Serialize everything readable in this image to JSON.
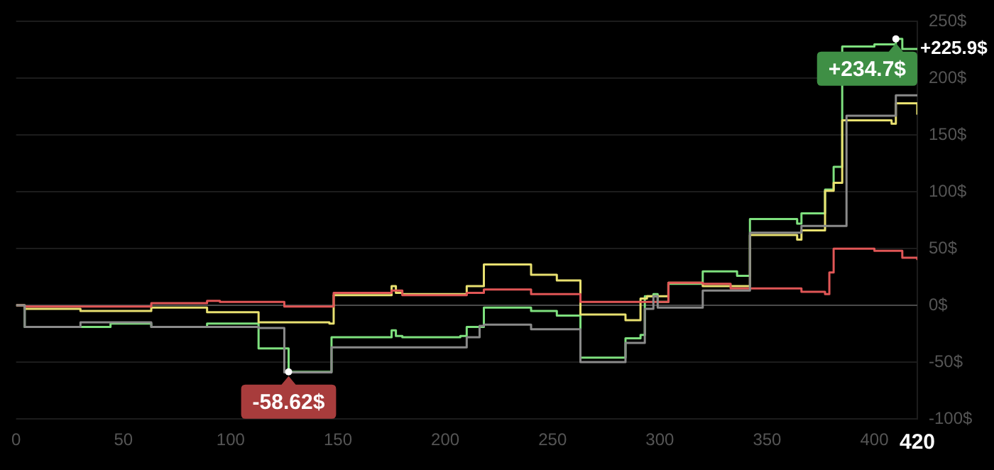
{
  "chart_data": {
    "type": "step",
    "xlim": [
      0,
      420
    ],
    "xticks": [
      0,
      50,
      100,
      150,
      200,
      250,
      300,
      350,
      400,
      {
        "value": 420,
        "label": "420"
      }
    ],
    "ylim": [
      -100,
      250
    ],
    "yticks": [
      {
        "value": -100,
        "label": "-100$"
      },
      {
        "value": -50,
        "label": "-50$"
      },
      {
        "value": 0,
        "label": "0$"
      },
      {
        "value": 50,
        "label": "50$"
      },
      {
        "value": 100,
        "label": "100$"
      },
      {
        "value": 150,
        "label": "150$"
      },
      {
        "value": 200,
        "label": "200$"
      },
      {
        "value": 250,
        "label": "250$"
      }
    ],
    "grid": "y",
    "legend": false,
    "marker": "none",
    "line_style": "solid",
    "ref_lines": [
      {
        "axis": "y",
        "value": 0,
        "label": null,
        "color": "#4a4a4a"
      }
    ],
    "series": [
      {
        "color": "#8a8a8a",
        "x": [
          0,
          4,
          30,
          63,
          89,
          113,
          125,
          147,
          210,
          216,
          218,
          240,
          263,
          284,
          293,
          297,
          299,
          320,
          342,
          366,
          387,
          410,
          420
        ],
        "values": [
          0,
          -19,
          -15,
          -19,
          -19,
          -20,
          -59,
          -37,
          -28,
          -18,
          -17,
          -21,
          -50,
          -33,
          -3,
          8,
          -2,
          13,
          64,
          70,
          167,
          185,
          185
        ]
      },
      {
        "color": "#e05656",
        "x": [
          0,
          4,
          63,
          89,
          95,
          125,
          148,
          175,
          180,
          210,
          218,
          240,
          263,
          291,
          304,
          320,
          333,
          366,
          377,
          379,
          381,
          400,
          413,
          420
        ],
        "values": [
          0,
          -1,
          2,
          4,
          3,
          -1,
          11,
          13,
          9,
          11,
          14,
          10,
          3,
          3,
          20,
          19,
          15,
          12,
          10,
          29,
          50,
          48,
          42,
          40
        ]
      },
      {
        "color": "#e8e070",
        "x": [
          0,
          4,
          30,
          63,
          89,
          113,
          146,
          148,
          175,
          177,
          180,
          210,
          218,
          240,
          252,
          263,
          284,
          291,
          294,
          304,
          320,
          342,
          364,
          366,
          377,
          381,
          385,
          408,
          410,
          420
        ],
        "values": [
          0,
          -3,
          -5,
          -2,
          -6,
          -15,
          -16,
          9,
          17,
          11,
          10,
          17,
          36,
          27,
          22,
          -8,
          -13,
          6,
          8,
          20,
          17,
          62,
          58,
          66,
          101,
          108,
          163,
          160,
          178,
          168
        ]
      },
      {
        "color": "#7ee07e",
        "x": [
          0,
          4,
          44,
          63,
          89,
          113,
          127,
          147,
          175,
          177,
          180,
          207,
          210,
          218,
          240,
          252,
          263,
          284,
          291,
          293,
          297,
          299,
          304,
          320,
          336,
          342,
          364,
          366,
          377,
          381,
          385,
          400,
          410,
          413,
          420
        ],
        "values": [
          0,
          -19,
          -16,
          -19,
          -16,
          -38,
          -58.62,
          -28,
          -22,
          -27,
          -28,
          -27,
          -19,
          -2,
          -5,
          -9,
          -46,
          -29,
          -26,
          8,
          10,
          3,
          19,
          30,
          26,
          76,
          72,
          81,
          102,
          122,
          228,
          230,
          234.7,
          225.9,
          225.9
        ]
      }
    ],
    "annotations": [
      {
        "text": "+234.7$",
        "x": 410,
        "y": 234.7
      },
      {
        "text": "-58.62$",
        "x": 127,
        "y": -58.62
      },
      {
        "text": "+225.9$",
        "x": 420,
        "y": 225.9
      }
    ]
  }
}
